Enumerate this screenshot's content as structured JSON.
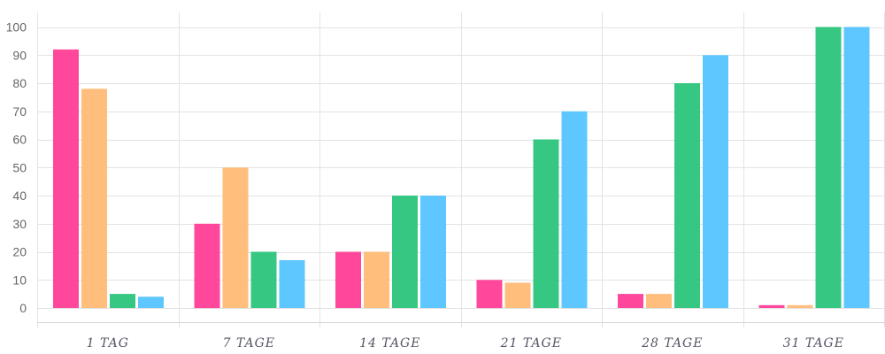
{
  "chart_data": {
    "type": "bar",
    "categories": [
      "1 TAG",
      "7 TAGE",
      "14 TAGE",
      "21 TAGE",
      "28 TAGE",
      "31 TAGE"
    ],
    "series": [
      {
        "values": [
          92,
          30,
          20,
          10,
          5,
          1
        ],
        "color": "#ff3e97"
      },
      {
        "values": [
          78,
          50,
          20,
          9,
          5,
          1
        ],
        "color": "#ffbb74"
      },
      {
        "values": [
          5,
          20,
          40,
          60,
          80,
          100
        ],
        "color": "#2bc57c"
      },
      {
        "values": [
          4,
          17,
          40,
          70,
          90,
          100
        ],
        "color": "#55c4ff"
      }
    ],
    "ylim": [
      0,
      100
    ],
    "yticks": [
      0,
      10,
      20,
      30,
      40,
      50,
      60,
      70,
      80,
      90,
      100
    ],
    "grid": true,
    "legend": "none"
  }
}
